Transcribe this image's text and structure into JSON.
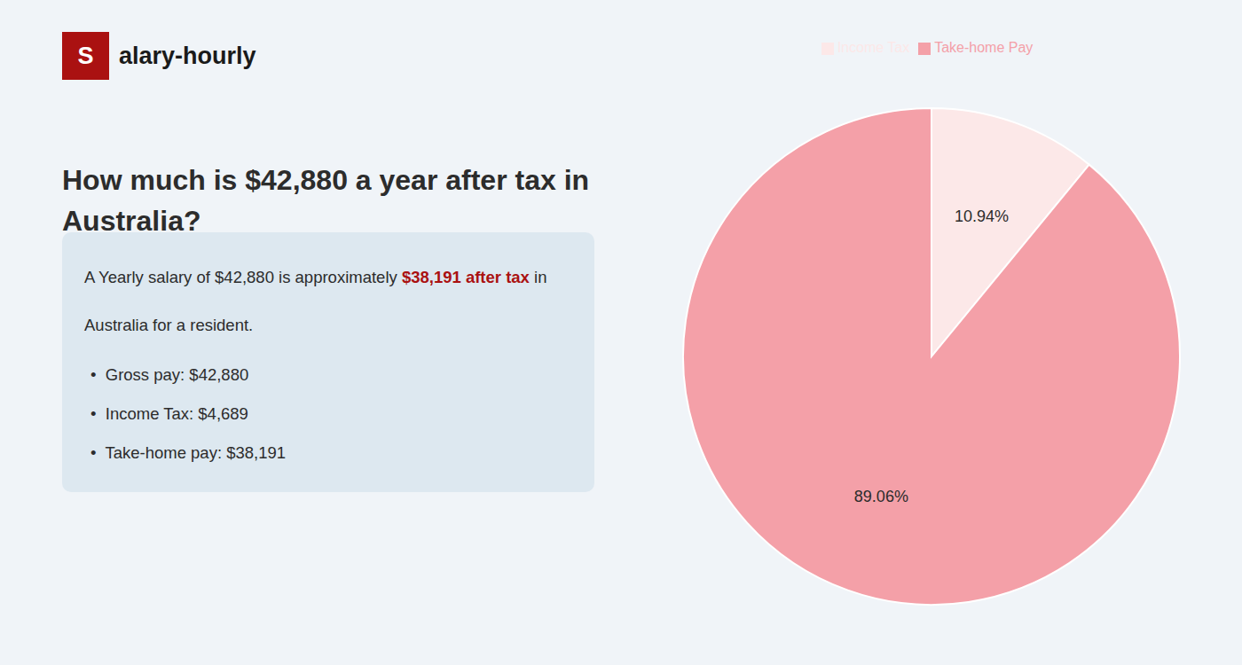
{
  "chart_data": {
    "type": "pie",
    "title": "How much is $42,880 a year after tax in\nAustralia?",
    "annotations": [
      "S",
      "alary-hourly",
      "A Yearly salary of $42,880 is approximately ",
      "$38,191 after tax",
      " in",
      "Australia for a resident.",
      "•  Gross pay: $42,880",
      "•  Income Tax: $4,689",
      "•  Take-home pay: $38,191"
    ],
    "categories": [
      "Income Tax",
      "Take-home Pay"
    ],
    "values": [
      10.94,
      89.06
    ],
    "value_labels": [
      "10.94%",
      "89.06%"
    ],
    "colors": [
      "#fce8e8",
      "#f4a0a8"
    ],
    "data_labels": true,
    "legend": "top"
  }
}
